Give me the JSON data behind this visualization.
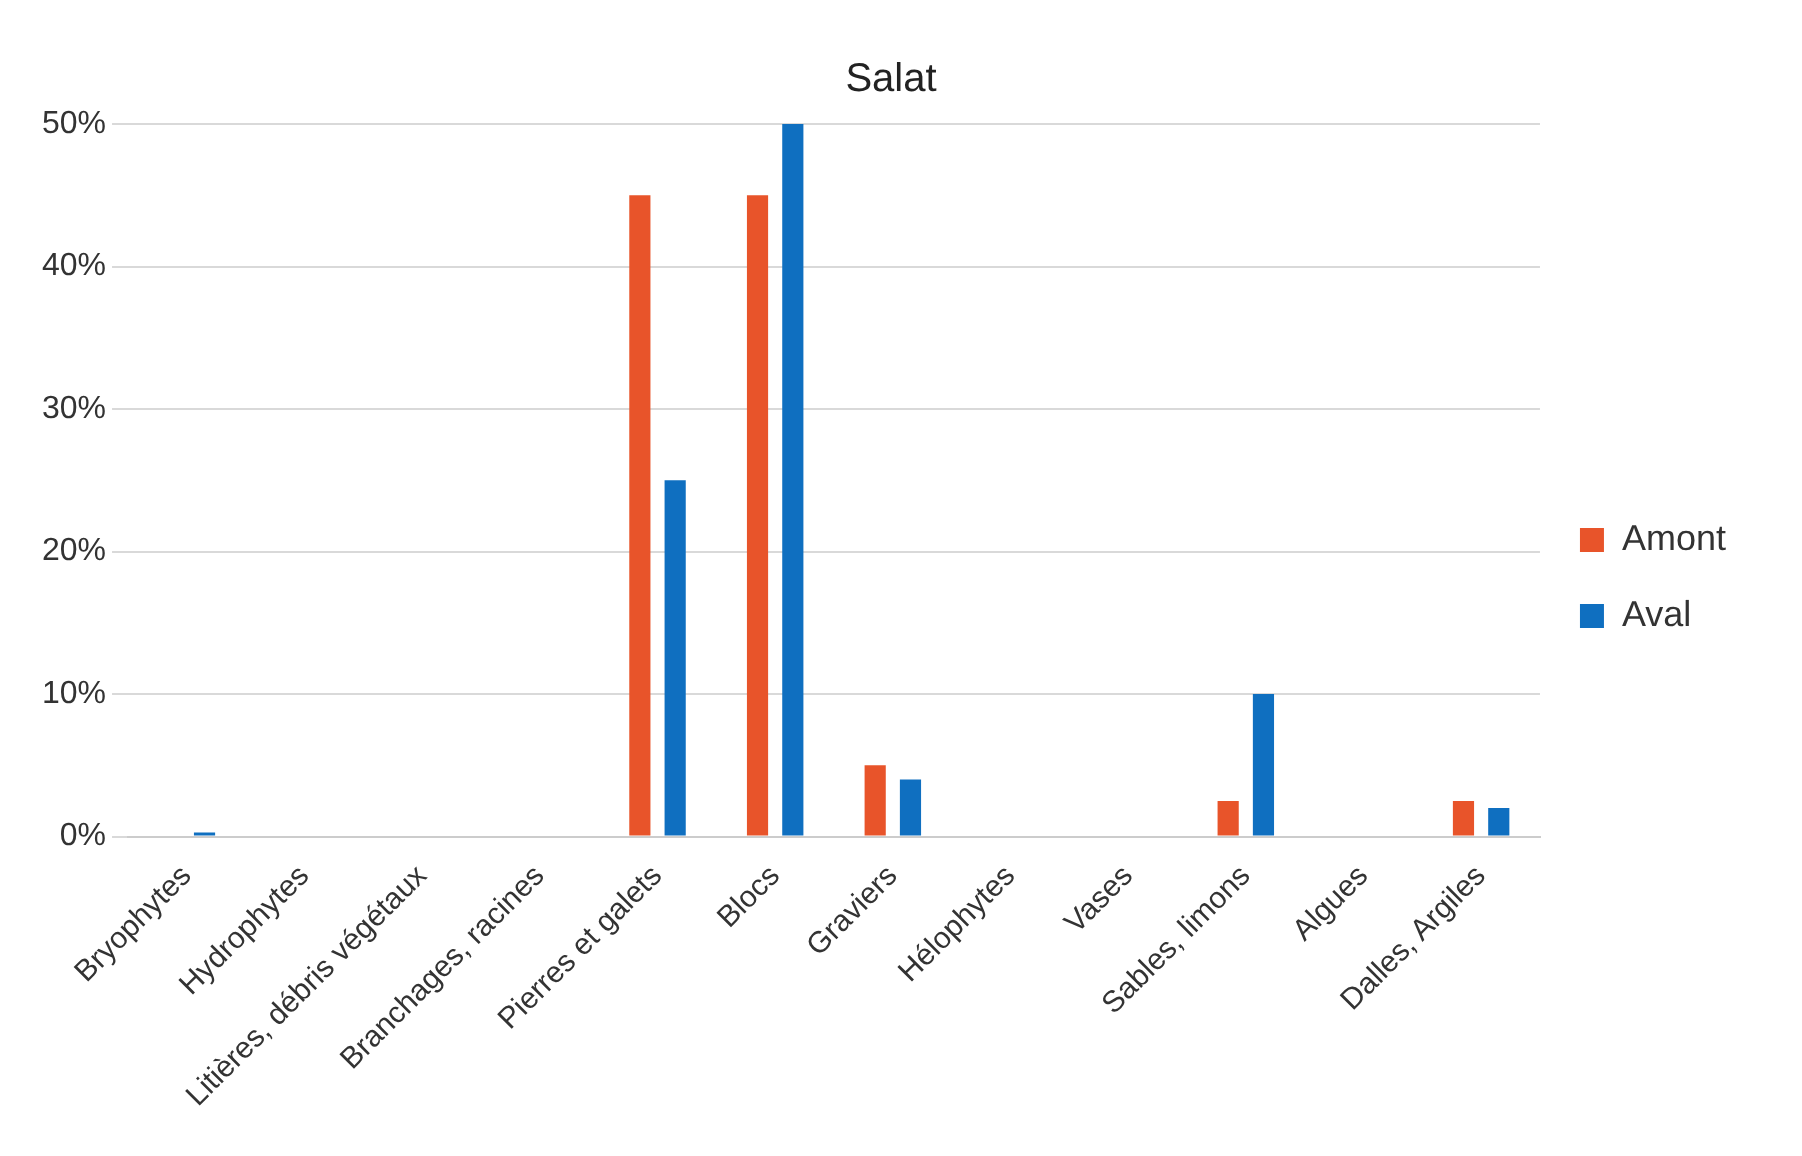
{
  "chart_data": {
    "type": "bar",
    "title": "Salat",
    "categories": [
      "Bryophytes",
      "Hydrophytes",
      "Litières, débris végétaux",
      "Branchages, racines",
      "Pierres et galets",
      "Blocs",
      "Graviers",
      "Hélophytes",
      "Vases",
      "Sables, limons",
      "Algues",
      "Dalles, Argiles"
    ],
    "series": [
      {
        "name": "Amont",
        "color": "#e8542a",
        "values": [
          null,
          null,
          null,
          null,
          45,
          45,
          5,
          null,
          null,
          2.5,
          null,
          2.5
        ]
      },
      {
        "name": "Aval",
        "color": "#0f6fc0",
        "values": [
          0,
          null,
          null,
          null,
          25,
          50,
          4,
          null,
          null,
          10,
          null,
          2
        ]
      }
    ],
    "ylim": [
      0,
      50
    ],
    "yticks": [
      {
        "value": 0,
        "label": "0%"
      },
      {
        "value": 10,
        "label": "10%"
      },
      {
        "value": 20,
        "label": "20%"
      },
      {
        "value": 30,
        "label": "30%"
      },
      {
        "value": 40,
        "label": "40%"
      },
      {
        "value": 50,
        "label": "50%"
      }
    ],
    "grid": "y",
    "legend": "right"
  }
}
